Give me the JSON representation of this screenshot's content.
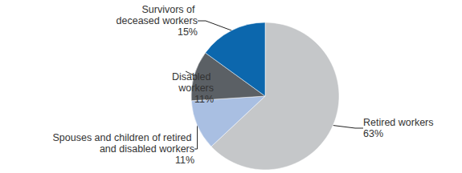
{
  "chart_data": {
    "type": "pie",
    "categories": [
      "Retired workers",
      "Spouses and children of retired and disabled workers",
      "Disabled workers",
      "Survivors of deceased workers"
    ],
    "values": [
      63,
      11,
      11,
      15
    ],
    "value_labels": [
      "63%",
      "11%",
      "11%",
      "15%"
    ],
    "colors": [
      "#c5c7c9",
      "#a9bfe2",
      "#5b6065",
      "#0c67ad"
    ],
    "data_labels": true
  }
}
